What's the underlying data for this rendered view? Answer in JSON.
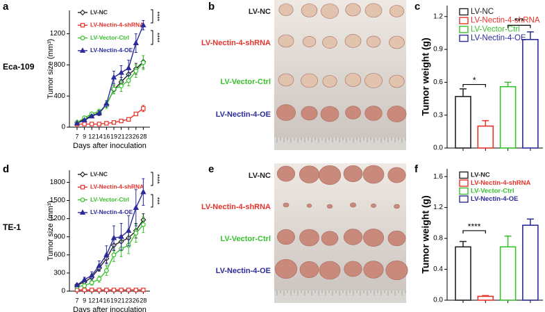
{
  "chart_data": [
    {
      "panel": "a",
      "type": "line",
      "row_label": "Eca-109",
      "xlabel": "Days after inoculation",
      "ylabel": "Tumor size (mm³)",
      "categories": [
        "7",
        "9",
        "12",
        "14",
        "16",
        "19",
        "21",
        "23",
        "26",
        "28"
      ],
      "ylim": [
        0,
        1500
      ],
      "yticks": [
        0,
        400,
        800,
        1200
      ],
      "series": [
        {
          "name": "LV-NC",
          "color": "#222222",
          "marker": "diamond",
          "values": [
            60,
            100,
            150,
            180,
            290,
            480,
            580,
            680,
            750,
            840
          ],
          "errors": [
            10,
            15,
            20,
            20,
            30,
            50,
            60,
            60,
            70,
            80
          ]
        },
        {
          "name": "LV-Nectin-4-shRNA",
          "color": "#e8312a",
          "marker": "square",
          "values": [
            40,
            40,
            40,
            40,
            50,
            60,
            80,
            100,
            170,
            240
          ],
          "errors": [
            5,
            5,
            5,
            5,
            5,
            10,
            10,
            15,
            20,
            40
          ]
        },
        {
          "name": "LV-Vector-Ctrl",
          "color": "#37c02c",
          "marker": "circle",
          "values": [
            60,
            120,
            170,
            200,
            280,
            490,
            530,
            600,
            720,
            830
          ],
          "errors": [
            10,
            15,
            20,
            30,
            40,
            60,
            70,
            70,
            80,
            90
          ]
        },
        {
          "name": "LV-Nectin-4-OE",
          "color": "#2a2a9a",
          "marker": "triangle",
          "values": [
            50,
            90,
            140,
            180,
            300,
            640,
            700,
            760,
            1080,
            1310
          ],
          "errors": [
            10,
            15,
            20,
            30,
            40,
            80,
            90,
            100,
            120,
            60
          ]
        }
      ],
      "annotations": [
        "****",
        "****"
      ]
    },
    {
      "panel": "c",
      "type": "bar",
      "ylabel": "Tumor weight (g)",
      "legend_bold": false,
      "categories": [
        null,
        null,
        null,
        null
      ],
      "legend": [
        "LV-NC",
        "LV-Nectin-4-shRNA",
        "LV-Vector-Ctrl",
        "LV-Nectin-4-OE"
      ],
      "colors": [
        "#222222",
        "#e8312a",
        "#37c02c",
        "#2a2a9a"
      ],
      "values": [
        0.47,
        0.2,
        0.56,
        0.99
      ],
      "errors": [
        0.07,
        0.05,
        0.04,
        0.07
      ],
      "ylim": [
        0,
        1.3
      ],
      "yticks": [
        {
          "value": 0,
          "label": "0.0"
        },
        0.3,
        0.6,
        0.9,
        1.2
      ],
      "annotations": [
        "*",
        "***"
      ]
    },
    {
      "panel": "d",
      "type": "line",
      "row_label": "TE-1",
      "xlabel": "Days after inoculation",
      "ylabel": "Tumor size (mm³)",
      "categories": [
        "7",
        "9",
        "12",
        "14",
        "16",
        "19",
        "21",
        "23",
        "26",
        "28"
      ],
      "ylim": [
        0,
        2000
      ],
      "yticks": [
        0,
        300,
        600,
        900,
        1200,
        1500,
        1800
      ],
      "series": [
        {
          "name": "LV-NC",
          "color": "#222222",
          "marker": "diamond",
          "values": [
            100,
            150,
            230,
            380,
            540,
            760,
            820,
            880,
            1000,
            1180
          ],
          "errors": [
            15,
            20,
            30,
            50,
            70,
            90,
            100,
            110,
            120,
            100
          ]
        },
        {
          "name": "LV-Nectin-4-shRNA",
          "color": "#e8312a",
          "marker": "square",
          "values": [
            20,
            20,
            20,
            20,
            20,
            20,
            20,
            20,
            20,
            20
          ],
          "errors": [
            5,
            5,
            5,
            5,
            5,
            5,
            5,
            5,
            5,
            5
          ]
        },
        {
          "name": "LV-Vector-Ctrl",
          "color": "#37c02c",
          "marker": "circle",
          "values": [
            80,
            90,
            140,
            200,
            340,
            600,
            700,
            760,
            960,
            1100
          ],
          "errors": [
            15,
            30,
            40,
            50,
            80,
            110,
            130,
            140,
            150,
            130
          ]
        },
        {
          "name": "LV-Nectin-4-OE",
          "color": "#2a2a9a",
          "marker": "triangle",
          "values": [
            100,
            190,
            260,
            420,
            600,
            880,
            900,
            1000,
            1380,
            1640
          ],
          "errors": [
            20,
            40,
            60,
            80,
            150,
            200,
            220,
            250,
            300,
            220
          ]
        }
      ],
      "annotations": [
        "****",
        "***"
      ]
    },
    {
      "panel": "f",
      "type": "bar",
      "ylabel": "Tumor weight (g)",
      "legend_bold": true,
      "categories": [
        null,
        null,
        null,
        null
      ],
      "legend": [
        "LV-NC",
        "LV-Nectin-4-shRNA",
        "LV-Vector-Ctrl",
        "LV-Nectin-4-OE"
      ],
      "colors": [
        "#222222",
        "#e8312a",
        "#37c02c",
        "#2a2a9a"
      ],
      "values": [
        0.69,
        0.05,
        0.69,
        0.97
      ],
      "errors": [
        0.07,
        0.01,
        0.14,
        0.08
      ],
      "ylim": [
        0,
        1.7
      ],
      "yticks": [
        {
          "value": 0,
          "label": "0.0"
        },
        0.4,
        0.8,
        1.2,
        1.6
      ],
      "annotations": [
        "****"
      ]
    }
  ],
  "photos": [
    {
      "panel": "b",
      "labels": [
        "LV-NC",
        "LV-Nectin-4-shRNA",
        "LV-Vector-Ctrl",
        "LV-Nectin-4-OE"
      ],
      "label_colors": [
        "#222222",
        "#e8312a",
        "#37c02c",
        "#2a2a9a"
      ]
    },
    {
      "panel": "e",
      "labels": [
        "LV-NC",
        "LV-Nectin-4-shRNA",
        "LV-Vector-Ctrl",
        "LV-Nectin-4-OE"
      ],
      "label_colors": [
        "#222222",
        "#e8312a",
        "#37c02c",
        "#2a2a9a"
      ]
    }
  ]
}
